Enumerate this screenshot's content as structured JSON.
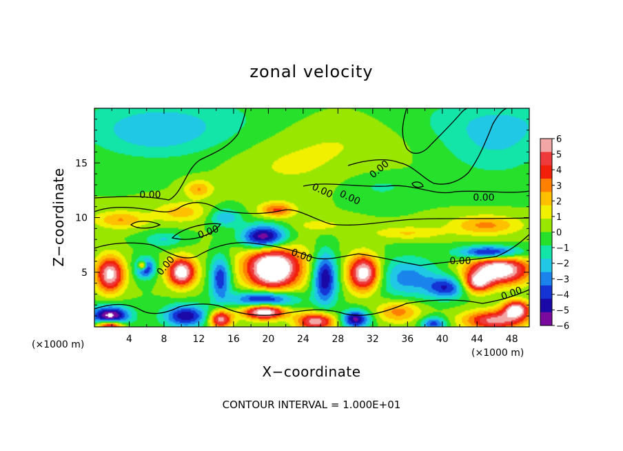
{
  "chart_data": {
    "type": "heatmap",
    "title": "zonal velocity",
    "xlabel": "X−coordinate",
    "ylabel": "Z−coordinate",
    "x_unit_left": "(×1000 m)",
    "x_unit_right": "(×1000 m)",
    "xlim": [
      0,
      50
    ],
    "ylim": [
      0,
      20
    ],
    "xticks": [
      4,
      8,
      12,
      16,
      20,
      24,
      28,
      32,
      36,
      40,
      44,
      48
    ],
    "xtick_labels": [
      "4",
      "8",
      "12",
      "16",
      "20",
      "24",
      "28",
      "32",
      "36",
      "40",
      "44",
      "48"
    ],
    "yticks": [
      5,
      10,
      15
    ],
    "ytick_labels": [
      "5",
      "10",
      "15"
    ],
    "colorbar": {
      "levels": [
        6,
        5,
        4,
        3,
        2,
        1,
        0,
        -1,
        -2,
        -3,
        -4,
        -5,
        -6
      ],
      "labels": [
        "6",
        "5",
        "4",
        "3",
        "2",
        "1",
        "0",
        "−1",
        "−2",
        "−3",
        "−4",
        "−5",
        "−6"
      ],
      "colors": [
        "#f3a6a6",
        "#ee3a3a",
        "#f2200b",
        "#ff7f00",
        "#ffc000",
        "#f0f000",
        "#99e600",
        "#27e02b",
        "#13e4a8",
        "#20c8e6",
        "#1a84ec",
        "#1434d6",
        "#1a09a6",
        "#7a0a9e"
      ],
      "top_color": "#ffffff",
      "bottom_color": "#ffffff"
    },
    "contour_labels": [
      "0.00",
      "0.00",
      "0.00",
      "0.00",
      "0.00",
      "0.00",
      "0.00",
      "0.00",
      "0.00",
      "0.00"
    ],
    "features": [
      {
        "x": 24.0,
        "z": 12.5,
        "v": 0.0,
        "sx": 30,
        "sz": 10
      },
      {
        "x": 7,
        "z": 17.5,
        "v": -1.6,
        "sx": 7,
        "sz": 2.2
      },
      {
        "x": 46,
        "z": 16.5,
        "v": -1.4,
        "sx": 6,
        "sz": 3
      },
      {
        "x": 28,
        "z": 17,
        "v": 0.9,
        "sx": 8,
        "sz": 2.5
      },
      {
        "x": 22,
        "z": 14.5,
        "v": 0.8,
        "sx": 6,
        "sz": 2
      },
      {
        "x": 33,
        "z": 12.8,
        "v": -1.0,
        "sx": 4,
        "sz": 1.2
      },
      {
        "x": 3,
        "z": 9.8,
        "v": 2.6,
        "sx": 3,
        "sz": 0.8
      },
      {
        "x": 10,
        "z": 10.5,
        "v": 2.2,
        "sx": 3,
        "sz": 0.9
      },
      {
        "x": 21,
        "z": 10.7,
        "v": 3.6,
        "sx": 2,
        "sz": 0.7
      },
      {
        "x": 12,
        "z": 12.6,
        "v": 2.6,
        "sx": 1.6,
        "sz": 0.8
      },
      {
        "x": 45,
        "z": 9.3,
        "v": 2.8,
        "sx": 4,
        "sz": 0.9
      },
      {
        "x": 36,
        "z": 8.6,
        "v": 1.8,
        "sx": 4,
        "sz": 0.6
      },
      {
        "x": 26,
        "z": 9.3,
        "v": 1.2,
        "sx": 3,
        "sz": 0.6
      },
      {
        "x": 15,
        "z": 10.0,
        "v": -2.6,
        "sx": 1.8,
        "sz": 0.8
      },
      {
        "x": 8,
        "z": 8.0,
        "v": -1.8,
        "sx": 2.4,
        "sz": 0.7
      },
      {
        "x": 19.5,
        "z": 8.2,
        "v": -6.4,
        "sx": 2.6,
        "sz": 1.1
      },
      {
        "x": 20.5,
        "z": 5.3,
        "v": 7.5,
        "sx": 2.8,
        "sz": 1.8
      },
      {
        "x": 21,
        "z": 5.8,
        "v": 1.5,
        "sx": 6,
        "sz": 2.5
      },
      {
        "x": 10,
        "z": 5.0,
        "v": 7.0,
        "sx": 1.6,
        "sz": 1.3
      },
      {
        "x": 1.8,
        "z": 4.8,
        "v": 6.5,
        "sx": 1.6,
        "sz": 1.6
      },
      {
        "x": 5.8,
        "z": 5.4,
        "v": -5.0,
        "sx": 1.1,
        "sz": 0.9
      },
      {
        "x": 5.5,
        "z": 5.6,
        "v": 6.2,
        "sx": 0.5,
        "sz": 0.4
      },
      {
        "x": 14.5,
        "z": 4.5,
        "v": -4.5,
        "sx": 1.2,
        "sz": 2
      },
      {
        "x": 26.5,
        "z": 4.5,
        "v": -5.5,
        "sx": 1.4,
        "sz": 2.4
      },
      {
        "x": 31,
        "z": 4.9,
        "v": 7.0,
        "sx": 1.8,
        "sz": 1.6
      },
      {
        "x": 36,
        "z": 4.5,
        "v": -3.0,
        "sx": 3.5,
        "sz": 1.8
      },
      {
        "x": 46.5,
        "z": 5.2,
        "v": 7.5,
        "sx": 3.5,
        "sz": 1.3
      },
      {
        "x": 44,
        "z": 4.0,
        "v": 5.0,
        "sx": 1.6,
        "sz": 0.9
      },
      {
        "x": 45.5,
        "z": 6.8,
        "v": -5.5,
        "sx": 3.5,
        "sz": 0.6
      },
      {
        "x": 40.5,
        "z": 3.6,
        "v": -4.0,
        "sx": 2.2,
        "sz": 1.0
      },
      {
        "x": 19.5,
        "z": 1.4,
        "v": 7.5,
        "sx": 2.4,
        "sz": 0.7
      },
      {
        "x": 19.5,
        "z": 2.5,
        "v": -5.5,
        "sx": 3.5,
        "sz": 0.8
      },
      {
        "x": 1.8,
        "z": 1.0,
        "v": -6.5,
        "sx": 2.2,
        "sz": 0.9
      },
      {
        "x": 1.8,
        "z": 0.1,
        "v": 7.0,
        "sx": 1.5,
        "sz": 0.5
      },
      {
        "x": 10.5,
        "z": 1.0,
        "v": -5.0,
        "sx": 2.5,
        "sz": 1.0
      },
      {
        "x": 14.5,
        "z": 0.7,
        "v": 6.0,
        "sx": 1.3,
        "sz": 0.8
      },
      {
        "x": 25.5,
        "z": 0.5,
        "v": 6.0,
        "sx": 2.2,
        "sz": 0.8
      },
      {
        "x": 30,
        "z": 0.7,
        "v": -5.5,
        "sx": 1.6,
        "sz": 0.8
      },
      {
        "x": 35,
        "z": 1.4,
        "v": 3.0,
        "sx": 2.5,
        "sz": 1.0
      },
      {
        "x": 39,
        "z": 0.3,
        "v": -4.0,
        "sx": 1.4,
        "sz": 0.6
      },
      {
        "x": 46,
        "z": 0.6,
        "v": 5.5,
        "sx": 3.5,
        "sz": 0.9
      },
      {
        "x": 48.5,
        "z": 1.6,
        "v": 6.5,
        "sx": 1.5,
        "sz": 0.8
      }
    ]
  },
  "footer": {
    "contour_interval": "CONTOUR INTERVAL = 1.000E+01"
  }
}
